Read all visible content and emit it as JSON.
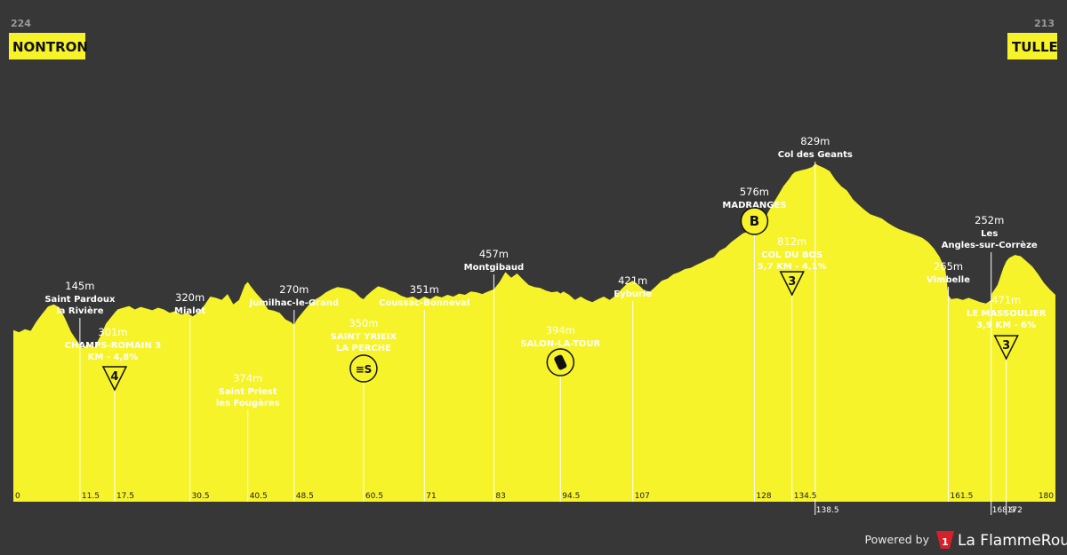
{
  "header": {
    "start": {
      "km": "224",
      "name": "NONTRON"
    },
    "finish": {
      "km": "213",
      "name": "TULLE"
    }
  },
  "chart_data": {
    "type": "area",
    "x_domain": [
      0,
      180
    ],
    "profile": [
      [
        0,
        400
      ],
      [
        1,
        395
      ],
      [
        2,
        402
      ],
      [
        3,
        398
      ],
      [
        4,
        420
      ],
      [
        5,
        438
      ],
      [
        6,
        455
      ],
      [
        7,
        460
      ],
      [
        8,
        452
      ],
      [
        9,
        425
      ],
      [
        10,
        395
      ],
      [
        11,
        375
      ],
      [
        11.5,
        365
      ],
      [
        12,
        358
      ],
      [
        13,
        368
      ],
      [
        14,
        360
      ],
      [
        15,
        385
      ],
      [
        16,
        415
      ],
      [
        17,
        432
      ],
      [
        17.5,
        440
      ],
      [
        18,
        448
      ],
      [
        19,
        452
      ],
      [
        20,
        456
      ],
      [
        21,
        448
      ],
      [
        22,
        454
      ],
      [
        23,
        450
      ],
      [
        24,
        446
      ],
      [
        25,
        452
      ],
      [
        26,
        448
      ],
      [
        27,
        440
      ],
      [
        28,
        444
      ],
      [
        29,
        436
      ],
      [
        30,
        440
      ],
      [
        30.5,
        436
      ],
      [
        31,
        432
      ],
      [
        32,
        442
      ],
      [
        33,
        458
      ],
      [
        34,
        478
      ],
      [
        35,
        475
      ],
      [
        36,
        470
      ],
      [
        37,
        484
      ],
      [
        38,
        460
      ],
      [
        39,
        470
      ],
      [
        40,
        505
      ],
      [
        40.5,
        512
      ],
      [
        41,
        502
      ],
      [
        42,
        485
      ],
      [
        43,
        470
      ],
      [
        44,
        448
      ],
      [
        45,
        445
      ],
      [
        46,
        440
      ],
      [
        47,
        425
      ],
      [
        48,
        418
      ],
      [
        48.5,
        412
      ],
      [
        49,
        425
      ],
      [
        50,
        442
      ],
      [
        51,
        458
      ],
      [
        52,
        470
      ],
      [
        53,
        478
      ],
      [
        54,
        488
      ],
      [
        55,
        495
      ],
      [
        56,
        500
      ],
      [
        57,
        498
      ],
      [
        58,
        495
      ],
      [
        59,
        488
      ],
      [
        60,
        475
      ],
      [
        60.5,
        472
      ],
      [
        61,
        480
      ],
      [
        62,
        492
      ],
      [
        63,
        502
      ],
      [
        64,
        498
      ],
      [
        65,
        492
      ],
      [
        66,
        488
      ],
      [
        67,
        480
      ],
      [
        68,
        475
      ],
      [
        69,
        478
      ],
      [
        70,
        470
      ],
      [
        71,
        478
      ],
      [
        72,
        472
      ],
      [
        73,
        480
      ],
      [
        74,
        476
      ],
      [
        75,
        482
      ],
      [
        76,
        478
      ],
      [
        77,
        485
      ],
      [
        78,
        482
      ],
      [
        79,
        490
      ],
      [
        80,
        488
      ],
      [
        81,
        484
      ],
      [
        82,
        490
      ],
      [
        83,
        495
      ],
      [
        84,
        512
      ],
      [
        85,
        535
      ],
      [
        86,
        522
      ],
      [
        87,
        532
      ],
      [
        88,
        518
      ],
      [
        89,
        505
      ],
      [
        90,
        500
      ],
      [
        91,
        498
      ],
      [
        92,
        492
      ],
      [
        93,
        488
      ],
      [
        94,
        490
      ],
      [
        94.5,
        485
      ],
      [
        95,
        490
      ],
      [
        96,
        482
      ],
      [
        97,
        470
      ],
      [
        98,
        478
      ],
      [
        99,
        470
      ],
      [
        100,
        465
      ],
      [
        101,
        472
      ],
      [
        102,
        478
      ],
      [
        103,
        470
      ],
      [
        104,
        480
      ],
      [
        105,
        495
      ],
      [
        106,
        508
      ],
      [
        107,
        515
      ],
      [
        108,
        505
      ],
      [
        109,
        492
      ],
      [
        110,
        490
      ],
      [
        111,
        502
      ],
      [
        112,
        515
      ],
      [
        113,
        520
      ],
      [
        114,
        530
      ],
      [
        115,
        535
      ],
      [
        116,
        542
      ],
      [
        117,
        545
      ],
      [
        118,
        552
      ],
      [
        119,
        558
      ],
      [
        120,
        565
      ],
      [
        121,
        570
      ],
      [
        122,
        585
      ],
      [
        123,
        592
      ],
      [
        124,
        605
      ],
      [
        125,
        615
      ],
      [
        126,
        625
      ],
      [
        127,
        630
      ],
      [
        128,
        635
      ],
      [
        129,
        645
      ],
      [
        130,
        665
      ],
      [
        131,
        690
      ],
      [
        132,
        712
      ],
      [
        133,
        735
      ],
      [
        134,
        752
      ],
      [
        134.5,
        762
      ],
      [
        135,
        768
      ],
      [
        136,
        772
      ],
      [
        137,
        775
      ],
      [
        138,
        780
      ],
      [
        138.5,
        788
      ],
      [
        139,
        784
      ],
      [
        140,
        778
      ],
      [
        141,
        770
      ],
      [
        142,
        750
      ],
      [
        143,
        735
      ],
      [
        144,
        725
      ],
      [
        145,
        705
      ],
      [
        146,
        692
      ],
      [
        147,
        680
      ],
      [
        148,
        670
      ],
      [
        149,
        665
      ],
      [
        150,
        660
      ],
      [
        151,
        650
      ],
      [
        152,
        642
      ],
      [
        153,
        635
      ],
      [
        154,
        630
      ],
      [
        155,
        625
      ],
      [
        156,
        620
      ],
      [
        157,
        615
      ],
      [
        158,
        605
      ],
      [
        159,
        590
      ],
      [
        160,
        570
      ],
      [
        161,
        540
      ],
      [
        161.5,
        482
      ],
      [
        162,
        472
      ],
      [
        163,
        474
      ],
      [
        164,
        470
      ],
      [
        165,
        475
      ],
      [
        166,
        470
      ],
      [
        167,
        465
      ],
      [
        168,
        462
      ],
      [
        168.9,
        470
      ],
      [
        169,
        485
      ],
      [
        170,
        505
      ],
      [
        171,
        545
      ],
      [
        171.5,
        560
      ],
      [
        172,
        568
      ],
      [
        173,
        575
      ],
      [
        174,
        572
      ],
      [
        175,
        560
      ],
      [
        176,
        548
      ],
      [
        177,
        530
      ],
      [
        178,
        510
      ],
      [
        179,
        495
      ],
      [
        180,
        482
      ]
    ],
    "km_ticks": [
      {
        "x": 0,
        "label": "0"
      },
      {
        "x": 11.5,
        "label": "11.5"
      },
      {
        "x": 17.5,
        "label": "17.5"
      },
      {
        "x": 30.5,
        "label": "30.5"
      },
      {
        "x": 40.5,
        "label": "40.5"
      },
      {
        "x": 48.5,
        "label": "48.5"
      },
      {
        "x": 60.5,
        "label": "60.5"
      },
      {
        "x": 71,
        "label": "71"
      },
      {
        "x": 83,
        "label": "83"
      },
      {
        "x": 94.5,
        "label": "94.5"
      },
      {
        "x": 107,
        "label": "107"
      },
      {
        "x": 128,
        "label": "128"
      },
      {
        "x": 134.5,
        "label": "134.5"
      },
      {
        "x": 138.5,
        "label": "138.5",
        "below": true
      },
      {
        "x": 161.5,
        "label": "161.5"
      },
      {
        "x": 168.9,
        "label": "168.9",
        "below": true
      },
      {
        "x": 171.5,
        "label": "172",
        "below": true
      },
      {
        "x": 180,
        "label": "180"
      }
    ],
    "waypoints": [
      {
        "x": 11.5,
        "alt": "145m",
        "name": [
          "Saint Pardoux",
          "la Rivière"
        ]
      },
      {
        "x": 17.5,
        "alt": "301m",
        "name": [
          "CHAMPS-ROMAIN    3",
          "KM - 4,8%"
        ],
        "marker": "cat",
        "marker_text": "4"
      },
      {
        "x": 30.5,
        "alt": "320m",
        "name": [
          "Mialet"
        ]
      },
      {
        "x": 40.5,
        "alt": "374m",
        "name": [
          "Saint Priest",
          "les Fougères"
        ]
      },
      {
        "x": 48.5,
        "alt": "270m",
        "name": [
          "Jumilhac-le-Grand"
        ]
      },
      {
        "x": 60.5,
        "alt": "350m",
        "name": [
          "SAINT YRIEIX",
          "LA PERCHE"
        ],
        "marker": "sprint",
        "marker_text": "≡S"
      },
      {
        "x": 71,
        "alt": "351m",
        "name": [
          "Coussac-Bonneval"
        ]
      },
      {
        "x": 83,
        "alt": "457m",
        "name": [
          "Montgibaud"
        ]
      },
      {
        "x": 94.5,
        "alt": "394m",
        "name": [
          "SALON-LA-TOUR"
        ],
        "marker": "feed"
      },
      {
        "x": 107,
        "alt": "421m",
        "name": [
          "Eyburie"
        ]
      },
      {
        "x": 128,
        "alt": "576m",
        "name": [
          "MADRANGES"
        ],
        "marker": "bonus",
        "marker_text": "B"
      },
      {
        "x": 134.5,
        "alt": "812m",
        "name": [
          "COL DU BOS",
          "5,7 KM - 4,1%"
        ],
        "marker": "cat",
        "marker_text": "3"
      },
      {
        "x": 138.5,
        "alt": "829m",
        "name": [
          "Col des Geants"
        ]
      },
      {
        "x": 161.5,
        "alt": "265m",
        "name": [
          "Vimbelle"
        ]
      },
      {
        "x": 168.9,
        "alt": "252m",
        "name": [
          "Les",
          "Angles-sur-Corrèze"
        ]
      },
      {
        "x": 171.5,
        "alt": "471m",
        "name": [
          "LE MASSOULIER",
          "3,9 KM - 6%"
        ],
        "marker": "cat",
        "marker_text": "3"
      }
    ],
    "colors": {
      "profile": "#f6f32a",
      "background": "#373737",
      "line": "#ffffff"
    }
  },
  "footer": {
    "powered": "Powered by",
    "brand": "La FlammeRouge",
    "logo_text": "1"
  }
}
